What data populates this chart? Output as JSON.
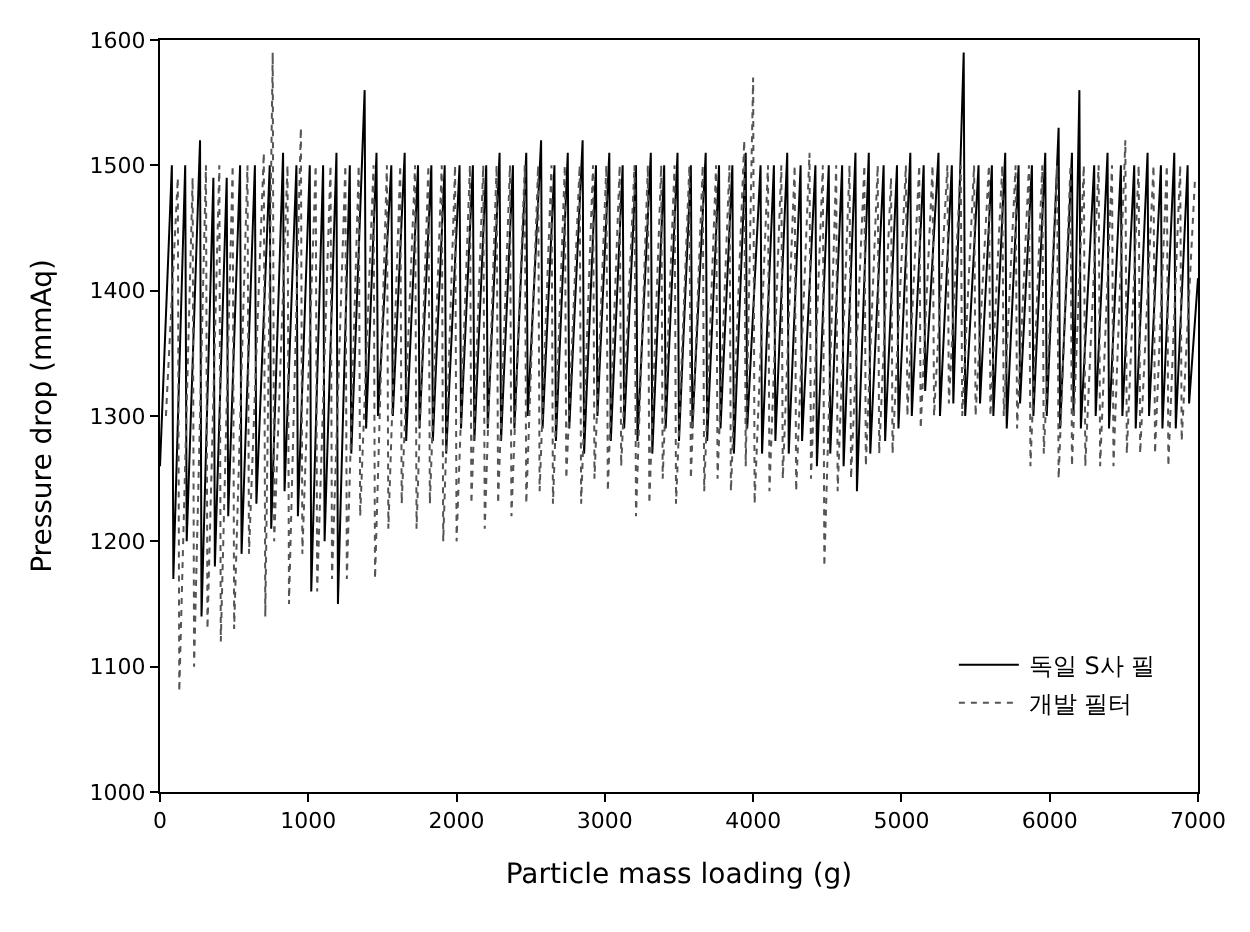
{
  "chart_data": {
    "type": "line",
    "xlabel": "Particle mass loading (g)",
    "ylabel": "Pressure drop (mmAq)",
    "xlim": [
      0,
      7000
    ],
    "ylim": [
      1000,
      1600
    ],
    "xticks": [
      0,
      1000,
      2000,
      3000,
      4000,
      5000,
      6000,
      7000
    ],
    "yticks": [
      1000,
      1100,
      1200,
      1300,
      1400,
      1500,
      1600
    ],
    "legend": "bottom right",
    "marker": "none",
    "series": [
      {
        "name": "독일 S사 필",
        "color": "#000000",
        "line_style": "solid",
        "x": [
          0,
          80,
          90,
          170,
          180,
          270,
          280,
          360,
          370,
          450,
          460,
          540,
          550,
          640,
          650,
          740,
          750,
          830,
          840,
          920,
          930,
          1010,
          1020,
          1100,
          1110,
          1190,
          1200,
          1280,
          1290,
          1380,
          1390,
          1460,
          1470,
          1560,
          1570,
          1650,
          1660,
          1740,
          1750,
          1830,
          1840,
          1920,
          1930,
          2020,
          2030,
          2110,
          2120,
          2200,
          2210,
          2290,
          2300,
          2380,
          2390,
          2470,
          2480,
          2570,
          2580,
          2660,
          2670,
          2750,
          2760,
          2850,
          2860,
          2940,
          2950,
          3030,
          3040,
          3120,
          3130,
          3210,
          3220,
          3310,
          3320,
          3400,
          3410,
          3490,
          3500,
          3580,
          3590,
          3680,
          3690,
          3770,
          3780,
          3860,
          3870,
          3950,
          3960,
          4050,
          4060,
          4140,
          4150,
          4230,
          4240,
          4320,
          4330,
          4420,
          4430,
          4510,
          4520,
          4600,
          4610,
          4690,
          4700,
          4780,
          4790,
          4880,
          4890,
          4970,
          4980,
          5060,
          5070,
          5150,
          5160,
          5250,
          5260,
          5340,
          5350,
          5420,
          5430,
          5520,
          5530,
          5610,
          5620,
          5700,
          5710,
          5790,
          5800,
          5880,
          5890,
          5970,
          5980,
          6060,
          6070,
          6150,
          6160,
          6200,
          6210,
          6300,
          6310,
          6390,
          6400,
          6480,
          6490,
          6570,
          6580,
          6660,
          6670,
          6750,
          6760,
          6840,
          6850,
          6930,
          6940,
          7000
        ],
        "values": [
          1260,
          1500,
          1170,
          1500,
          1200,
          1520,
          1140,
          1490,
          1180,
          1490,
          1220,
          1500,
          1190,
          1500,
          1230,
          1500,
          1210,
          1510,
          1240,
          1500,
          1220,
          1500,
          1160,
          1500,
          1200,
          1510,
          1150,
          1500,
          1270,
          1560,
          1290,
          1510,
          1300,
          1500,
          1300,
          1510,
          1280,
          1500,
          1290,
          1500,
          1280,
          1500,
          1270,
          1500,
          1290,
          1500,
          1280,
          1500,
          1290,
          1510,
          1280,
          1500,
          1290,
          1510,
          1300,
          1520,
          1290,
          1500,
          1280,
          1510,
          1290,
          1520,
          1270,
          1500,
          1300,
          1510,
          1280,
          1500,
          1290,
          1500,
          1280,
          1510,
          1270,
          1500,
          1290,
          1510,
          1280,
          1500,
          1290,
          1510,
          1280,
          1500,
          1290,
          1500,
          1270,
          1510,
          1290,
          1500,
          1270,
          1500,
          1280,
          1510,
          1270,
          1500,
          1280,
          1500,
          1260,
          1500,
          1270,
          1500,
          1260,
          1510,
          1240,
          1510,
          1270,
          1500,
          1280,
          1500,
          1290,
          1510,
          1300,
          1500,
          1320,
          1510,
          1300,
          1500,
          1310,
          1590,
          1300,
          1500,
          1310,
          1500,
          1300,
          1510,
          1290,
          1500,
          1310,
          1500,
          1300,
          1510,
          1300,
          1530,
          1290,
          1510,
          1300,
          1560,
          1290,
          1500,
          1300,
          1510,
          1290,
          1500,
          1300,
          1500,
          1290,
          1510,
          1300,
          1500,
          1290,
          1510,
          1290,
          1500,
          1310,
          1410
        ]
      },
      {
        "name": "개발 필터",
        "color": "#555555",
        "line_style": "dotted",
        "x": [
          40,
          120,
          130,
          220,
          230,
          310,
          320,
          400,
          410,
          490,
          500,
          590,
          600,
          700,
          710,
          760,
          770,
          860,
          870,
          950,
          960,
          1050,
          1060,
          1150,
          1160,
          1250,
          1260,
          1340,
          1350,
          1440,
          1450,
          1530,
          1540,
          1620,
          1630,
          1720,
          1730,
          1810,
          1820,
          1900,
          1910,
          1990,
          2000,
          2090,
          2100,
          2180,
          2190,
          2270,
          2280,
          2360,
          2370,
          2460,
          2470,
          2550,
          2560,
          2640,
          2650,
          2730,
          2740,
          2830,
          2840,
          2920,
          2930,
          3010,
          3020,
          3100,
          3110,
          3200,
          3210,
          3290,
          3300,
          3380,
          3390,
          3470,
          3480,
          3570,
          3580,
          3660,
          3670,
          3750,
          3760,
          3840,
          3850,
          3940,
          3950,
          4000,
          4010,
          4100,
          4110,
          4190,
          4200,
          4280,
          4290,
          4380,
          4390,
          4470,
          4480,
          4560,
          4570,
          4650,
          4660,
          4750,
          4760,
          4840,
          4850,
          4930,
          4940,
          5030,
          5040,
          5120,
          5130,
          5210,
          5220,
          5310,
          5320,
          5400,
          5410,
          5490,
          5500,
          5590,
          5600,
          5680,
          5690,
          5770,
          5780,
          5860,
          5870,
          5950,
          5960,
          6050,
          6060,
          6140,
          6150,
          6230,
          6240,
          6330,
          6340,
          6420,
          6430,
          6510,
          6520,
          6600,
          6610,
          6700,
          6710,
          6790,
          6800,
          6880,
          6890,
          6980
        ],
        "values": [
          1300,
          1490,
          1080,
          1490,
          1100,
          1500,
          1130,
          1500,
          1120,
          1500,
          1130,
          1500,
          1190,
          1510,
          1140,
          1590,
          1200,
          1500,
          1150,
          1530,
          1190,
          1500,
          1160,
          1500,
          1170,
          1500,
          1170,
          1500,
          1220,
          1500,
          1170,
          1500,
          1210,
          1500,
          1230,
          1500,
          1210,
          1500,
          1230,
          1500,
          1200,
          1500,
          1200,
          1500,
          1230,
          1500,
          1210,
          1500,
          1230,
          1500,
          1220,
          1500,
          1230,
          1500,
          1240,
          1500,
          1230,
          1500,
          1250,
          1500,
          1230,
          1500,
          1250,
          1500,
          1240,
          1500,
          1260,
          1500,
          1220,
          1500,
          1230,
          1500,
          1250,
          1500,
          1230,
          1500,
          1250,
          1500,
          1240,
          1500,
          1250,
          1500,
          1240,
          1520,
          1260,
          1570,
          1230,
          1500,
          1240,
          1500,
          1250,
          1500,
          1240,
          1510,
          1250,
          1500,
          1180,
          1500,
          1240,
          1500,
          1250,
          1500,
          1260,
          1500,
          1270,
          1490,
          1270,
          1500,
          1300,
          1500,
          1290,
          1500,
          1300,
          1500,
          1310,
          1500,
          1300,
          1500,
          1300,
          1500,
          1300,
          1500,
          1300,
          1500,
          1290,
          1500,
          1260,
          1500,
          1270,
          1500,
          1250,
          1500,
          1260,
          1500,
          1260,
          1500,
          1260,
          1500,
          1260,
          1520,
          1270,
          1500,
          1270,
          1500,
          1270,
          1500,
          1260,
          1500,
          1280,
          1490
        ]
      }
    ]
  }
}
